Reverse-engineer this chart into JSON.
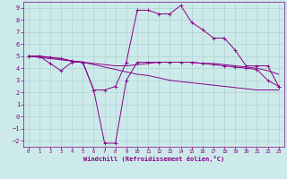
{
  "xlabel": "Windchill (Refroidissement éolien,°C)",
  "bg_color": "#cceaea",
  "line_color": "#880088",
  "grid_color": "#aacccc",
  "xlim_min": -0.5,
  "xlim_max": 23.5,
  "ylim_min": -2.5,
  "ylim_max": 9.5,
  "xticks": [
    0,
    1,
    2,
    3,
    4,
    5,
    6,
    7,
    8,
    9,
    10,
    11,
    12,
    13,
    14,
    15,
    16,
    17,
    18,
    19,
    20,
    21,
    22,
    23
  ],
  "yticks": [
    -2,
    -1,
    0,
    1,
    2,
    3,
    4,
    5,
    6,
    7,
    8,
    9
  ],
  "curve1_x": [
    0,
    1,
    2,
    3,
    4,
    5,
    6,
    7,
    8,
    9,
    10,
    11,
    12,
    13,
    14,
    15,
    16,
    17,
    18,
    19,
    20,
    21,
    22,
    23
  ],
  "curve1_y": [
    5.0,
    5.0,
    4.4,
    3.8,
    4.5,
    4.5,
    2.2,
    2.2,
    2.5,
    4.5,
    8.8,
    8.8,
    8.5,
    8.5,
    9.2,
    7.8,
    7.2,
    6.5,
    6.5,
    5.5,
    4.2,
    4.2,
    4.2,
    2.5
  ],
  "curve2_x": [
    0,
    1,
    2,
    3,
    4,
    5,
    6,
    7,
    8,
    9,
    10,
    11,
    12,
    13,
    14,
    15,
    16,
    17,
    18,
    19,
    20,
    21,
    22,
    23
  ],
  "curve2_y": [
    5.0,
    4.9,
    4.8,
    4.7,
    4.6,
    4.5,
    4.4,
    4.3,
    4.2,
    4.2,
    4.3,
    4.4,
    4.5,
    4.5,
    4.5,
    4.5,
    4.4,
    4.4,
    4.3,
    4.2,
    4.1,
    4.0,
    3.8,
    3.5
  ],
  "curve3_x": [
    0,
    1,
    2,
    3,
    4,
    5,
    6,
    7,
    8,
    9,
    10,
    11,
    12,
    13,
    14,
    15,
    16,
    17,
    18,
    19,
    20,
    21,
    22,
    23
  ],
  "curve3_y": [
    5.0,
    5.0,
    4.9,
    4.8,
    4.6,
    4.5,
    2.2,
    -2.2,
    -2.2,
    3.0,
    4.5,
    4.5,
    4.5,
    4.5,
    4.5,
    4.5,
    4.4,
    4.3,
    4.2,
    4.1,
    4.0,
    3.9,
    3.0,
    2.5
  ],
  "curve4_x": [
    0,
    1,
    2,
    3,
    4,
    5,
    6,
    7,
    8,
    9,
    10,
    11,
    12,
    13,
    14,
    15,
    16,
    17,
    18,
    19,
    20,
    21,
    22,
    23
  ],
  "curve4_y": [
    5.0,
    5.0,
    4.9,
    4.8,
    4.6,
    4.5,
    4.3,
    4.1,
    3.9,
    3.7,
    3.5,
    3.4,
    3.2,
    3.0,
    2.9,
    2.8,
    2.7,
    2.6,
    2.5,
    2.4,
    2.3,
    2.2,
    2.2,
    2.2
  ]
}
